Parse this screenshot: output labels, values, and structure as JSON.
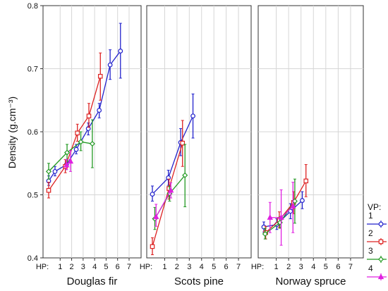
{
  "chart_data": {
    "type": "line",
    "ylabel": "Density (g.cm⁻³)",
    "ylim": [
      0.4,
      0.8
    ],
    "y_ticks": [
      0.4,
      0.5,
      0.6,
      0.7,
      0.8
    ],
    "xlim": [
      0,
      7.8
    ],
    "x_prefix": "HP:",
    "x_ticks": [
      1,
      2,
      3,
      4,
      5,
      6,
      7
    ],
    "grid": true,
    "legend": {
      "title": "VP:",
      "position": "right",
      "entries": [
        "1",
        "2",
        "3",
        "4"
      ]
    },
    "series_colors": {
      "1": "#2222cc",
      "2": "#dd2222",
      "3": "#229922",
      "4": "#e020e0"
    },
    "series_markers": {
      "1": "circle",
      "2": "square",
      "3": "diamond",
      "4": "triangle"
    },
    "panels": [
      {
        "title": "Douglas fir",
        "series": [
          {
            "legend": "1",
            "points": [
              {
                "x": 0.0,
                "y": 0.522,
                "lo": 0.515,
                "hi": 0.53
              },
              {
                "x": 0.55,
                "y": 0.537,
                "lo": 0.53,
                "hi": 0.545
              },
              {
                "x": 1.55,
                "y": 0.548,
                "lo": 0.54,
                "hi": 0.556
              },
              {
                "x": 2.4,
                "y": 0.572,
                "lo": 0.565,
                "hi": 0.58
              },
              {
                "x": 3.45,
                "y": 0.605,
                "lo": 0.595,
                "hi": 0.614
              },
              {
                "x": 4.4,
                "y": 0.634,
                "lo": 0.622,
                "hi": 0.645
              },
              {
                "x": 5.35,
                "y": 0.706,
                "lo": 0.683,
                "hi": 0.73
              },
              {
                "x": 6.25,
                "y": 0.728,
                "lo": 0.685,
                "hi": 0.772
              }
            ]
          },
          {
            "legend": "2",
            "points": [
              {
                "x": 0.0,
                "y": 0.507,
                "lo": 0.495,
                "hi": 0.52
              },
              {
                "x": 1.45,
                "y": 0.545,
                "lo": 0.535,
                "hi": 0.556
              },
              {
                "x": 2.5,
                "y": 0.598,
                "lo": 0.585,
                "hi": 0.612
              },
              {
                "x": 3.5,
                "y": 0.625,
                "lo": 0.607,
                "hi": 0.645
              },
              {
                "x": 4.5,
                "y": 0.688,
                "lo": 0.65,
                "hi": 0.725
              }
            ]
          },
          {
            "legend": "3",
            "points": [
              {
                "x": 0.0,
                "y": 0.537,
                "lo": 0.525,
                "hi": 0.55
              },
              {
                "x": 1.6,
                "y": 0.567,
                "lo": 0.553,
                "hi": 0.58
              },
              {
                "x": 2.8,
                "y": 0.584,
                "lo": 0.57,
                "hi": 0.6
              },
              {
                "x": 3.8,
                "y": 0.581,
                "lo": 0.543,
                "hi": 0.619
              }
            ]
          },
          {
            "legend": "4",
            "points": [
              {
                "x": 1.55,
                "y": 0.547,
                "lo": 0.54,
                "hi": 0.556
              },
              {
                "x": 1.9,
                "y": 0.553,
                "lo": 0.537,
                "hi": 0.57
              }
            ]
          }
        ]
      },
      {
        "title": "Scots pine",
        "series": [
          {
            "legend": "1",
            "points": [
              {
                "x": 0.0,
                "y": 0.501,
                "lo": 0.49,
                "hi": 0.514
              },
              {
                "x": 1.3,
                "y": 0.527,
                "lo": 0.515,
                "hi": 0.539
              },
              {
                "x": 2.3,
                "y": 0.583,
                "lo": 0.562,
                "hi": 0.605
              },
              {
                "x": 3.3,
                "y": 0.625,
                "lo": 0.59,
                "hi": 0.66
              }
            ]
          },
          {
            "legend": "2",
            "points": [
              {
                "x": 0.0,
                "y": 0.418,
                "lo": 0.405,
                "hi": 0.432
              },
              {
                "x": 1.35,
                "y": 0.51,
                "lo": 0.493,
                "hi": 0.525
              },
              {
                "x": 2.45,
                "y": 0.582,
                "lo": 0.545,
                "hi": 0.618
              }
            ]
          },
          {
            "legend": "3",
            "points": [
              {
                "x": 0.2,
                "y": 0.462,
                "lo": 0.445,
                "hi": 0.48
              },
              {
                "x": 1.4,
                "y": 0.502,
                "lo": 0.49,
                "hi": 0.514
              },
              {
                "x": 2.65,
                "y": 0.531,
                "lo": 0.481,
                "hi": 0.58
              }
            ]
          },
          {
            "legend": "4",
            "points": [
              {
                "x": 0.3,
                "y": 0.465,
                "lo": 0.45,
                "hi": 0.485
              },
              {
                "x": 1.5,
                "y": 0.507,
                "lo": 0.495,
                "hi": 0.519
              }
            ]
          }
        ]
      },
      {
        "title": "Norway spruce",
        "series": [
          {
            "legend": "1",
            "points": [
              {
                "x": 0.0,
                "y": 0.449,
                "lo": 0.441,
                "hi": 0.457
              },
              {
                "x": 1.05,
                "y": 0.453,
                "lo": 0.445,
                "hi": 0.462
              },
              {
                "x": 2.15,
                "y": 0.474,
                "lo": 0.462,
                "hi": 0.486
              },
              {
                "x": 3.1,
                "y": 0.491,
                "lo": 0.478,
                "hi": 0.505
              }
            ]
          },
          {
            "legend": "2",
            "points": [
              {
                "x": 0.15,
                "y": 0.44,
                "lo": 0.43,
                "hi": 0.45
              },
              {
                "x": 1.25,
                "y": 0.46,
                "lo": 0.448,
                "hi": 0.473
              },
              {
                "x": 2.4,
                "y": 0.488,
                "lo": 0.47,
                "hi": 0.505
              },
              {
                "x": 3.4,
                "y": 0.522,
                "lo": 0.497,
                "hi": 0.548
              }
            ]
          },
          {
            "legend": "3",
            "points": [
              {
                "x": 0.1,
                "y": 0.438,
                "lo": 0.43,
                "hi": 0.447
              },
              {
                "x": 1.3,
                "y": 0.456,
                "lo": 0.447,
                "hi": 0.465
              },
              {
                "x": 2.5,
                "y": 0.49,
                "lo": 0.455,
                "hi": 0.525
              }
            ]
          },
          {
            "legend": "4",
            "points": [
              {
                "x": 0.5,
                "y": 0.464,
                "lo": 0.44,
                "hi": 0.488
              },
              {
                "x": 1.4,
                "y": 0.464,
                "lo": 0.42,
                "hi": 0.508
              },
              {
                "x": 2.35,
                "y": 0.482,
                "lo": 0.44,
                "hi": 0.52
              }
            ]
          }
        ]
      }
    ]
  }
}
